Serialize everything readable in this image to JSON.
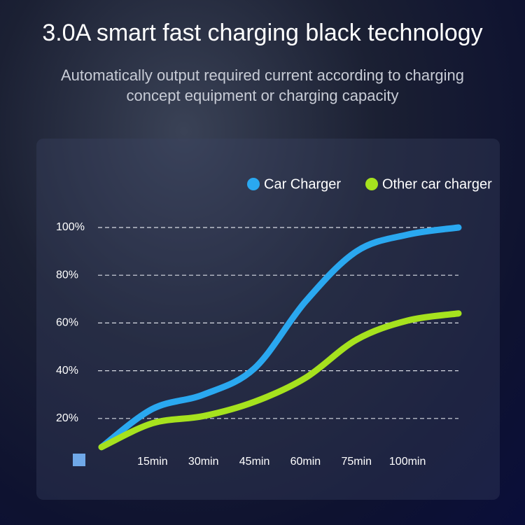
{
  "chart_data": {
    "type": "line",
    "title": "3.0A smart fast charging black technology",
    "subtitle": "Automatically output required current according to charging concept equipment or charging capacity",
    "categories": [
      null,
      "15min",
      "30min",
      "45min",
      "60min",
      "75min",
      "100min",
      null
    ],
    "series": [
      {
        "name": "Car Charger",
        "color": "#2aa8f0",
        "values": [
          8,
          24,
          30,
          41,
          69,
          90,
          97,
          100
        ]
      },
      {
        "name": "Other car charger",
        "color": "#a6e21e",
        "values": [
          8,
          18,
          21,
          27,
          37,
          53,
          61,
          64
        ]
      }
    ],
    "ylim": [
      0,
      100
    ],
    "yticks": [
      {
        "value": 20,
        "label": "20%"
      },
      {
        "value": 40,
        "label": "40%"
      },
      {
        "value": 60,
        "label": "60%"
      },
      {
        "value": 80,
        "label": "80%"
      },
      {
        "value": 100,
        "label": "100%"
      }
    ],
    "grid": true
  }
}
